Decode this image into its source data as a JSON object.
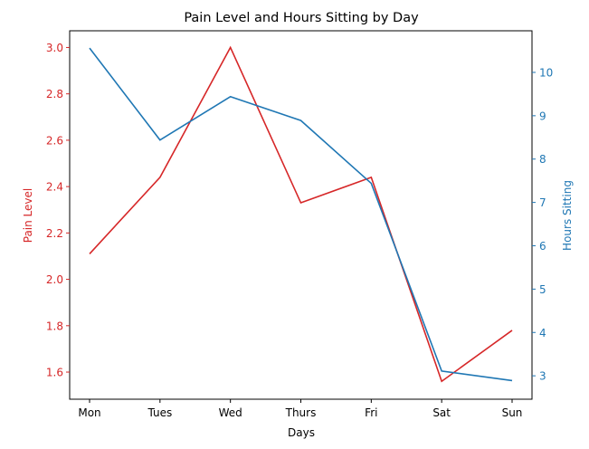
{
  "chart_data": {
    "type": "line",
    "title": "Pain Level and Hours Sitting by Day",
    "xlabel": "Days",
    "categories": [
      "Mon",
      "Tues",
      "Wed",
      "Thurs",
      "Fri",
      "Sat",
      "Sun"
    ],
    "grid": false,
    "legend": "none",
    "left_axis": {
      "label": "Pain Level",
      "color": "#d62728",
      "ylim": [
        1.483,
        3.072
      ],
      "ticks": [
        "1.6",
        "1.8",
        "2.0",
        "2.2",
        "2.4",
        "2.6",
        "2.8",
        "3.0"
      ],
      "tick_values": [
        1.6,
        1.8,
        2.0,
        2.2,
        2.4,
        2.6,
        2.8,
        3.0
      ]
    },
    "right_axis": {
      "label": "Hours Sitting",
      "color": "#1f77b4",
      "ylim": [
        2.46,
        10.96
      ],
      "ticks": [
        "3",
        "4",
        "5",
        "6",
        "7",
        "8",
        "9",
        "10"
      ],
      "tick_values": [
        3,
        4,
        5,
        6,
        7,
        8,
        9,
        10
      ]
    },
    "series": [
      {
        "axis": "left",
        "color": "#d62728",
        "values": [
          2.11,
          2.44,
          3.0,
          2.33,
          2.44,
          1.56,
          1.78
        ]
      },
      {
        "axis": "right",
        "color": "#1f77b4",
        "values": [
          10.56,
          8.44,
          9.44,
          8.89,
          7.44,
          3.11,
          2.89
        ]
      }
    ]
  }
}
